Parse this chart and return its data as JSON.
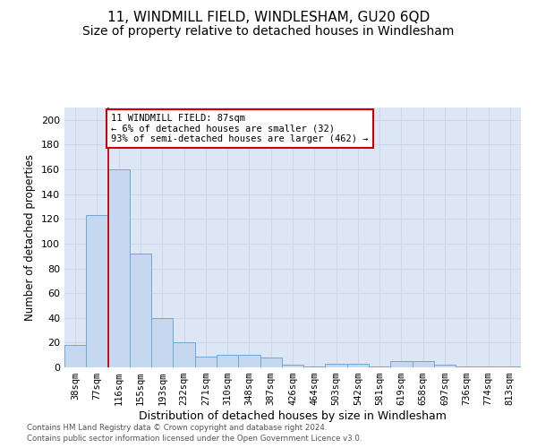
{
  "title": "11, WINDMILL FIELD, WINDLESHAM, GU20 6QD",
  "subtitle": "Size of property relative to detached houses in Windlesham",
  "xlabel": "Distribution of detached houses by size in Windlesham",
  "ylabel": "Number of detached properties",
  "categories": [
    "38sqm",
    "77sqm",
    "116sqm",
    "155sqm",
    "193sqm",
    "232sqm",
    "271sqm",
    "310sqm",
    "348sqm",
    "387sqm",
    "426sqm",
    "464sqm",
    "503sqm",
    "542sqm",
    "581sqm",
    "619sqm",
    "658sqm",
    "697sqm",
    "736sqm",
    "774sqm",
    "813sqm"
  ],
  "values": [
    18,
    123,
    160,
    92,
    40,
    20,
    9,
    10,
    10,
    8,
    2,
    1,
    3,
    3,
    1,
    5,
    5,
    2,
    1,
    1,
    1
  ],
  "bar_color": "#c5d8f0",
  "bar_edge_color": "#6aaad4",
  "red_line_x": 1.5,
  "annotation_text": "11 WINDMILL FIELD: 87sqm\n← 6% of detached houses are smaller (32)\n93% of semi-detached houses are larger (462) →",
  "annotation_box_facecolor": "#ffffff",
  "annotation_box_edgecolor": "#cc0000",
  "red_line_color": "#cc0000",
  "ylim": [
    0,
    210
  ],
  "yticks": [
    0,
    20,
    40,
    60,
    80,
    100,
    120,
    140,
    160,
    180,
    200
  ],
  "grid_color": "#d0d8e8",
  "bg_color": "#dce6f5",
  "footer_line1": "Contains HM Land Registry data © Crown copyright and database right 2024.",
  "footer_line2": "Contains public sector information licensed under the Open Government Licence v3.0.",
  "title_fontsize": 11,
  "subtitle_fontsize": 10,
  "xlabel_fontsize": 9,
  "ylabel_fontsize": 8.5,
  "tick_fontsize": 8,
  "annotation_fontsize": 7.5
}
